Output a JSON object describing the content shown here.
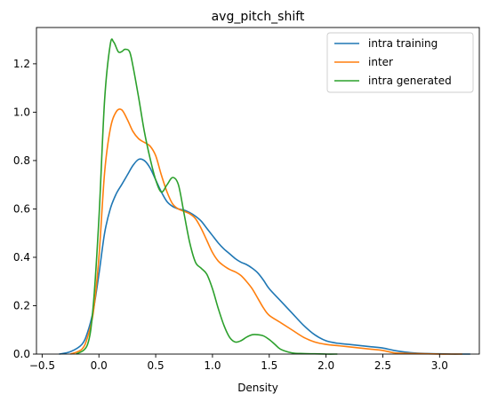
{
  "chart_data": {
    "type": "line",
    "title": "avg_pitch_shift",
    "xlabel": "Density",
    "ylabel": "",
    "xlim": [
      -0.55,
      3.35
    ],
    "ylim": [
      0,
      1.35
    ],
    "xticks": [
      -0.5,
      0.0,
      0.5,
      1.0,
      1.5,
      2.0,
      2.5,
      3.0
    ],
    "xtick_labels": [
      "−0.5",
      "0.0",
      "0.5",
      "1.0",
      "1.5",
      "2.0",
      "2.5",
      "3.0"
    ],
    "yticks": [
      0.0,
      0.2,
      0.4,
      0.6,
      0.8,
      1.0,
      1.2
    ],
    "ytick_labels": [
      "0.0",
      "0.2",
      "0.4",
      "0.6",
      "0.8",
      "1.0",
      "1.2"
    ],
    "grid": false,
    "legend_position": "top-right",
    "series": [
      {
        "name": "intra training",
        "color": "#1f77b4",
        "x": [
          -0.35,
          -0.25,
          -0.15,
          -0.1,
          -0.05,
          0.0,
          0.05,
          0.1,
          0.15,
          0.2,
          0.25,
          0.3,
          0.35,
          0.4,
          0.45,
          0.5,
          0.55,
          0.6,
          0.65,
          0.7,
          0.75,
          0.8,
          0.85,
          0.9,
          0.95,
          1.0,
          1.05,
          1.1,
          1.15,
          1.2,
          1.25,
          1.3,
          1.35,
          1.4,
          1.45,
          1.5,
          1.6,
          1.7,
          1.8,
          1.9,
          2.0,
          2.1,
          2.2,
          2.3,
          2.4,
          2.5,
          2.6,
          2.7,
          2.8,
          2.9,
          3.0,
          3.1,
          3.2,
          3.27
        ],
        "y": [
          0.0,
          0.01,
          0.04,
          0.09,
          0.18,
          0.33,
          0.5,
          0.6,
          0.66,
          0.7,
          0.74,
          0.78,
          0.805,
          0.8,
          0.77,
          0.72,
          0.67,
          0.63,
          0.61,
          0.6,
          0.595,
          0.585,
          0.57,
          0.55,
          0.52,
          0.49,
          0.46,
          0.435,
          0.415,
          0.395,
          0.38,
          0.37,
          0.355,
          0.335,
          0.305,
          0.27,
          0.22,
          0.17,
          0.12,
          0.08,
          0.055,
          0.045,
          0.04,
          0.035,
          0.03,
          0.025,
          0.015,
          0.008,
          0.004,
          0.002,
          0.001,
          0.0,
          0.0,
          0.0
        ]
      },
      {
        "name": "inter",
        "color": "#ff7f0e",
        "x": [
          -0.25,
          -0.15,
          -0.1,
          -0.05,
          0.0,
          0.05,
          0.1,
          0.15,
          0.2,
          0.25,
          0.3,
          0.35,
          0.4,
          0.45,
          0.5,
          0.55,
          0.6,
          0.65,
          0.7,
          0.75,
          0.8,
          0.85,
          0.9,
          0.95,
          1.0,
          1.05,
          1.1,
          1.15,
          1.2,
          1.25,
          1.3,
          1.35,
          1.4,
          1.45,
          1.5,
          1.6,
          1.7,
          1.8,
          1.9,
          2.0,
          2.1,
          2.2,
          2.3,
          2.4,
          2.5,
          2.6,
          2.7,
          2.8,
          2.9,
          3.0,
          3.1,
          3.2
        ],
        "y": [
          0.0,
          0.02,
          0.07,
          0.17,
          0.4,
          0.75,
          0.93,
          1.0,
          1.01,
          0.97,
          0.92,
          0.89,
          0.875,
          0.86,
          0.82,
          0.74,
          0.67,
          0.62,
          0.6,
          0.59,
          0.58,
          0.56,
          0.52,
          0.47,
          0.42,
          0.385,
          0.365,
          0.35,
          0.34,
          0.325,
          0.3,
          0.27,
          0.23,
          0.19,
          0.16,
          0.13,
          0.1,
          0.07,
          0.05,
          0.04,
          0.035,
          0.03,
          0.025,
          0.02,
          0.015,
          0.005,
          0.003,
          0.002,
          0.001,
          0.0,
          0.0,
          0.0
        ]
      },
      {
        "name": "intra generated",
        "color": "#2ca02c",
        "x": [
          -0.2,
          -0.1,
          -0.05,
          0.0,
          0.05,
          0.1,
          0.13,
          0.17,
          0.2,
          0.23,
          0.27,
          0.3,
          0.35,
          0.4,
          0.45,
          0.5,
          0.55,
          0.6,
          0.65,
          0.7,
          0.75,
          0.8,
          0.85,
          0.9,
          0.95,
          1.0,
          1.05,
          1.1,
          1.15,
          1.2,
          1.25,
          1.3,
          1.35,
          1.4,
          1.45,
          1.5,
          1.55,
          1.6,
          1.7,
          1.8,
          1.9,
          2.0,
          2.1
        ],
        "y": [
          0.0,
          0.04,
          0.2,
          0.56,
          1.05,
          1.28,
          1.29,
          1.25,
          1.25,
          1.26,
          1.25,
          1.19,
          1.06,
          0.92,
          0.81,
          0.72,
          0.67,
          0.7,
          0.73,
          0.7,
          0.58,
          0.46,
          0.38,
          0.355,
          0.33,
          0.27,
          0.19,
          0.12,
          0.07,
          0.05,
          0.055,
          0.07,
          0.08,
          0.08,
          0.075,
          0.06,
          0.04,
          0.02,
          0.005,
          0.002,
          0.001,
          0.0,
          0.0
        ]
      }
    ]
  }
}
